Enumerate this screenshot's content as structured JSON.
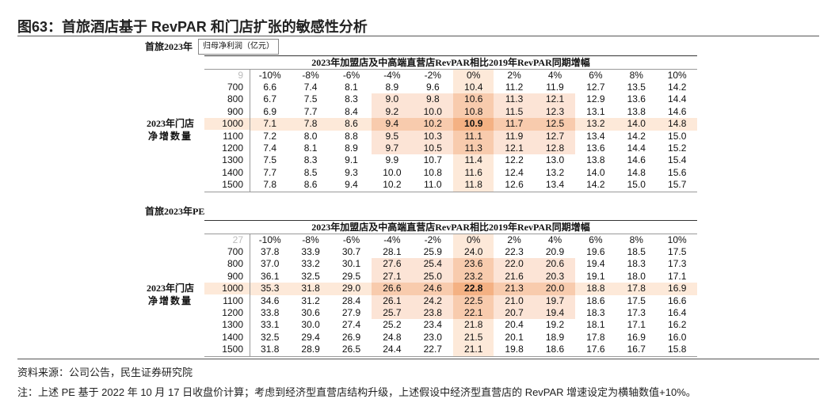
{
  "title": "图63：首旅酒店基于 RevPAR 和门店扩张的敏感性分析",
  "tables": [
    {
      "label": "首旅2023年",
      "metric": "归母净利润（亿元）",
      "header": "2023年加盟店及中高端直营店RevPAR相比2019年RevPAR同期增幅",
      "corner": "9",
      "columns": [
        "-10%",
        "-8%",
        "-6%",
        "-4%",
        "-2%",
        "0%",
        "2%",
        "4%",
        "6%",
        "8%",
        "10%"
      ],
      "row_header": [
        "2023年门店",
        "净增数量"
      ],
      "rows": [
        {
          "label": "700",
          "values": [
            "6.6",
            "7.4",
            "8.1",
            "8.9",
            "9.6",
            "10.4",
            "11.2",
            "11.9",
            "12.7",
            "13.5",
            "14.2"
          ]
        },
        {
          "label": "800",
          "values": [
            "6.7",
            "7.5",
            "8.3",
            "9.0",
            "9.8",
            "10.6",
            "11.3",
            "12.1",
            "12.9",
            "13.6",
            "14.4"
          ]
        },
        {
          "label": "900",
          "values": [
            "6.9",
            "7.7",
            "8.4",
            "9.2",
            "10.0",
            "10.8",
            "11.5",
            "12.3",
            "13.1",
            "13.8",
            "14.6"
          ]
        },
        {
          "label": "1000",
          "values": [
            "7.1",
            "7.8",
            "8.6",
            "9.4",
            "10.2",
            "10.9",
            "11.7",
            "12.5",
            "13.2",
            "14.0",
            "14.8"
          ]
        },
        {
          "label": "1100",
          "values": [
            "7.2",
            "8.0",
            "8.8",
            "9.5",
            "10.3",
            "11.1",
            "11.9",
            "12.7",
            "13.4",
            "14.2",
            "15.0"
          ]
        },
        {
          "label": "1200",
          "values": [
            "7.4",
            "8.1",
            "8.9",
            "9.7",
            "10.5",
            "11.3",
            "12.1",
            "12.8",
            "13.6",
            "14.4",
            "15.2"
          ]
        },
        {
          "label": "1300",
          "values": [
            "7.5",
            "8.3",
            "9.1",
            "9.9",
            "10.7",
            "11.4",
            "12.2",
            "13.0",
            "13.8",
            "14.6",
            "15.4"
          ]
        },
        {
          "label": "1400",
          "values": [
            "7.7",
            "8.5",
            "9.3",
            "10.0",
            "10.8",
            "11.6",
            "12.4",
            "13.2",
            "14.0",
            "14.8",
            "15.6"
          ]
        },
        {
          "label": "1500",
          "values": [
            "7.8",
            "8.6",
            "9.4",
            "10.2",
            "11.0",
            "11.8",
            "12.6",
            "13.4",
            "14.2",
            "15.0",
            "15.7"
          ]
        }
      ]
    },
    {
      "label": "首旅2023年PE",
      "header": "2023年加盟店及中高端直营店RevPAR相比2019年RevPAR同期增幅",
      "corner": "27",
      "columns": [
        "-10%",
        "-8%",
        "-6%",
        "-4%",
        "-2%",
        "0%",
        "2%",
        "4%",
        "6%",
        "8%",
        "10%"
      ],
      "row_header": [
        "2023年门店",
        "净增数量"
      ],
      "rows": [
        {
          "label": "700",
          "values": [
            "37.8",
            "33.9",
            "30.7",
            "28.1",
            "25.9",
            "24.0",
            "22.3",
            "20.9",
            "19.6",
            "18.5",
            "17.5"
          ]
        },
        {
          "label": "800",
          "values": [
            "37.0",
            "33.2",
            "30.1",
            "27.6",
            "25.4",
            "23.6",
            "22.0",
            "20.6",
            "19.4",
            "18.3",
            "17.3"
          ]
        },
        {
          "label": "900",
          "values": [
            "36.1",
            "32.5",
            "29.5",
            "27.1",
            "25.0",
            "23.2",
            "21.6",
            "20.3",
            "19.1",
            "18.0",
            "17.1"
          ]
        },
        {
          "label": "1000",
          "values": [
            "35.3",
            "31.8",
            "29.0",
            "26.6",
            "24.6",
            "22.8",
            "21.3",
            "20.0",
            "18.8",
            "17.8",
            "16.9"
          ]
        },
        {
          "label": "1100",
          "values": [
            "34.6",
            "31.2",
            "28.4",
            "26.1",
            "24.2",
            "22.5",
            "21.0",
            "19.7",
            "18.6",
            "17.5",
            "16.6"
          ]
        },
        {
          "label": "1200",
          "values": [
            "33.8",
            "30.6",
            "27.9",
            "25.7",
            "23.8",
            "22.1",
            "20.7",
            "19.4",
            "18.3",
            "17.3",
            "16.4"
          ]
        },
        {
          "label": "1300",
          "values": [
            "33.1",
            "30.0",
            "27.4",
            "25.2",
            "23.4",
            "21.8",
            "20.4",
            "19.2",
            "18.1",
            "17.1",
            "16.2"
          ]
        },
        {
          "label": "1400",
          "values": [
            "32.5",
            "29.4",
            "26.9",
            "24.8",
            "23.0",
            "21.5",
            "20.1",
            "18.9",
            "17.8",
            "16.9",
            "16.0"
          ]
        },
        {
          "label": "1500",
          "values": [
            "31.8",
            "28.9",
            "26.5",
            "24.4",
            "22.7",
            "21.1",
            "19.8",
            "18.6",
            "17.6",
            "16.7",
            "15.8"
          ]
        }
      ]
    }
  ],
  "footer": {
    "source": "资料来源：公司公告，民生证券研究院",
    "note": "注：上述 PE 基于 2022 年 10 月 17 日收盘价计算；考虑到经济型直营店结构升级，上述假设中经济型直营店的 RevPAR 增速设定为横轴数值+10%。"
  }
}
